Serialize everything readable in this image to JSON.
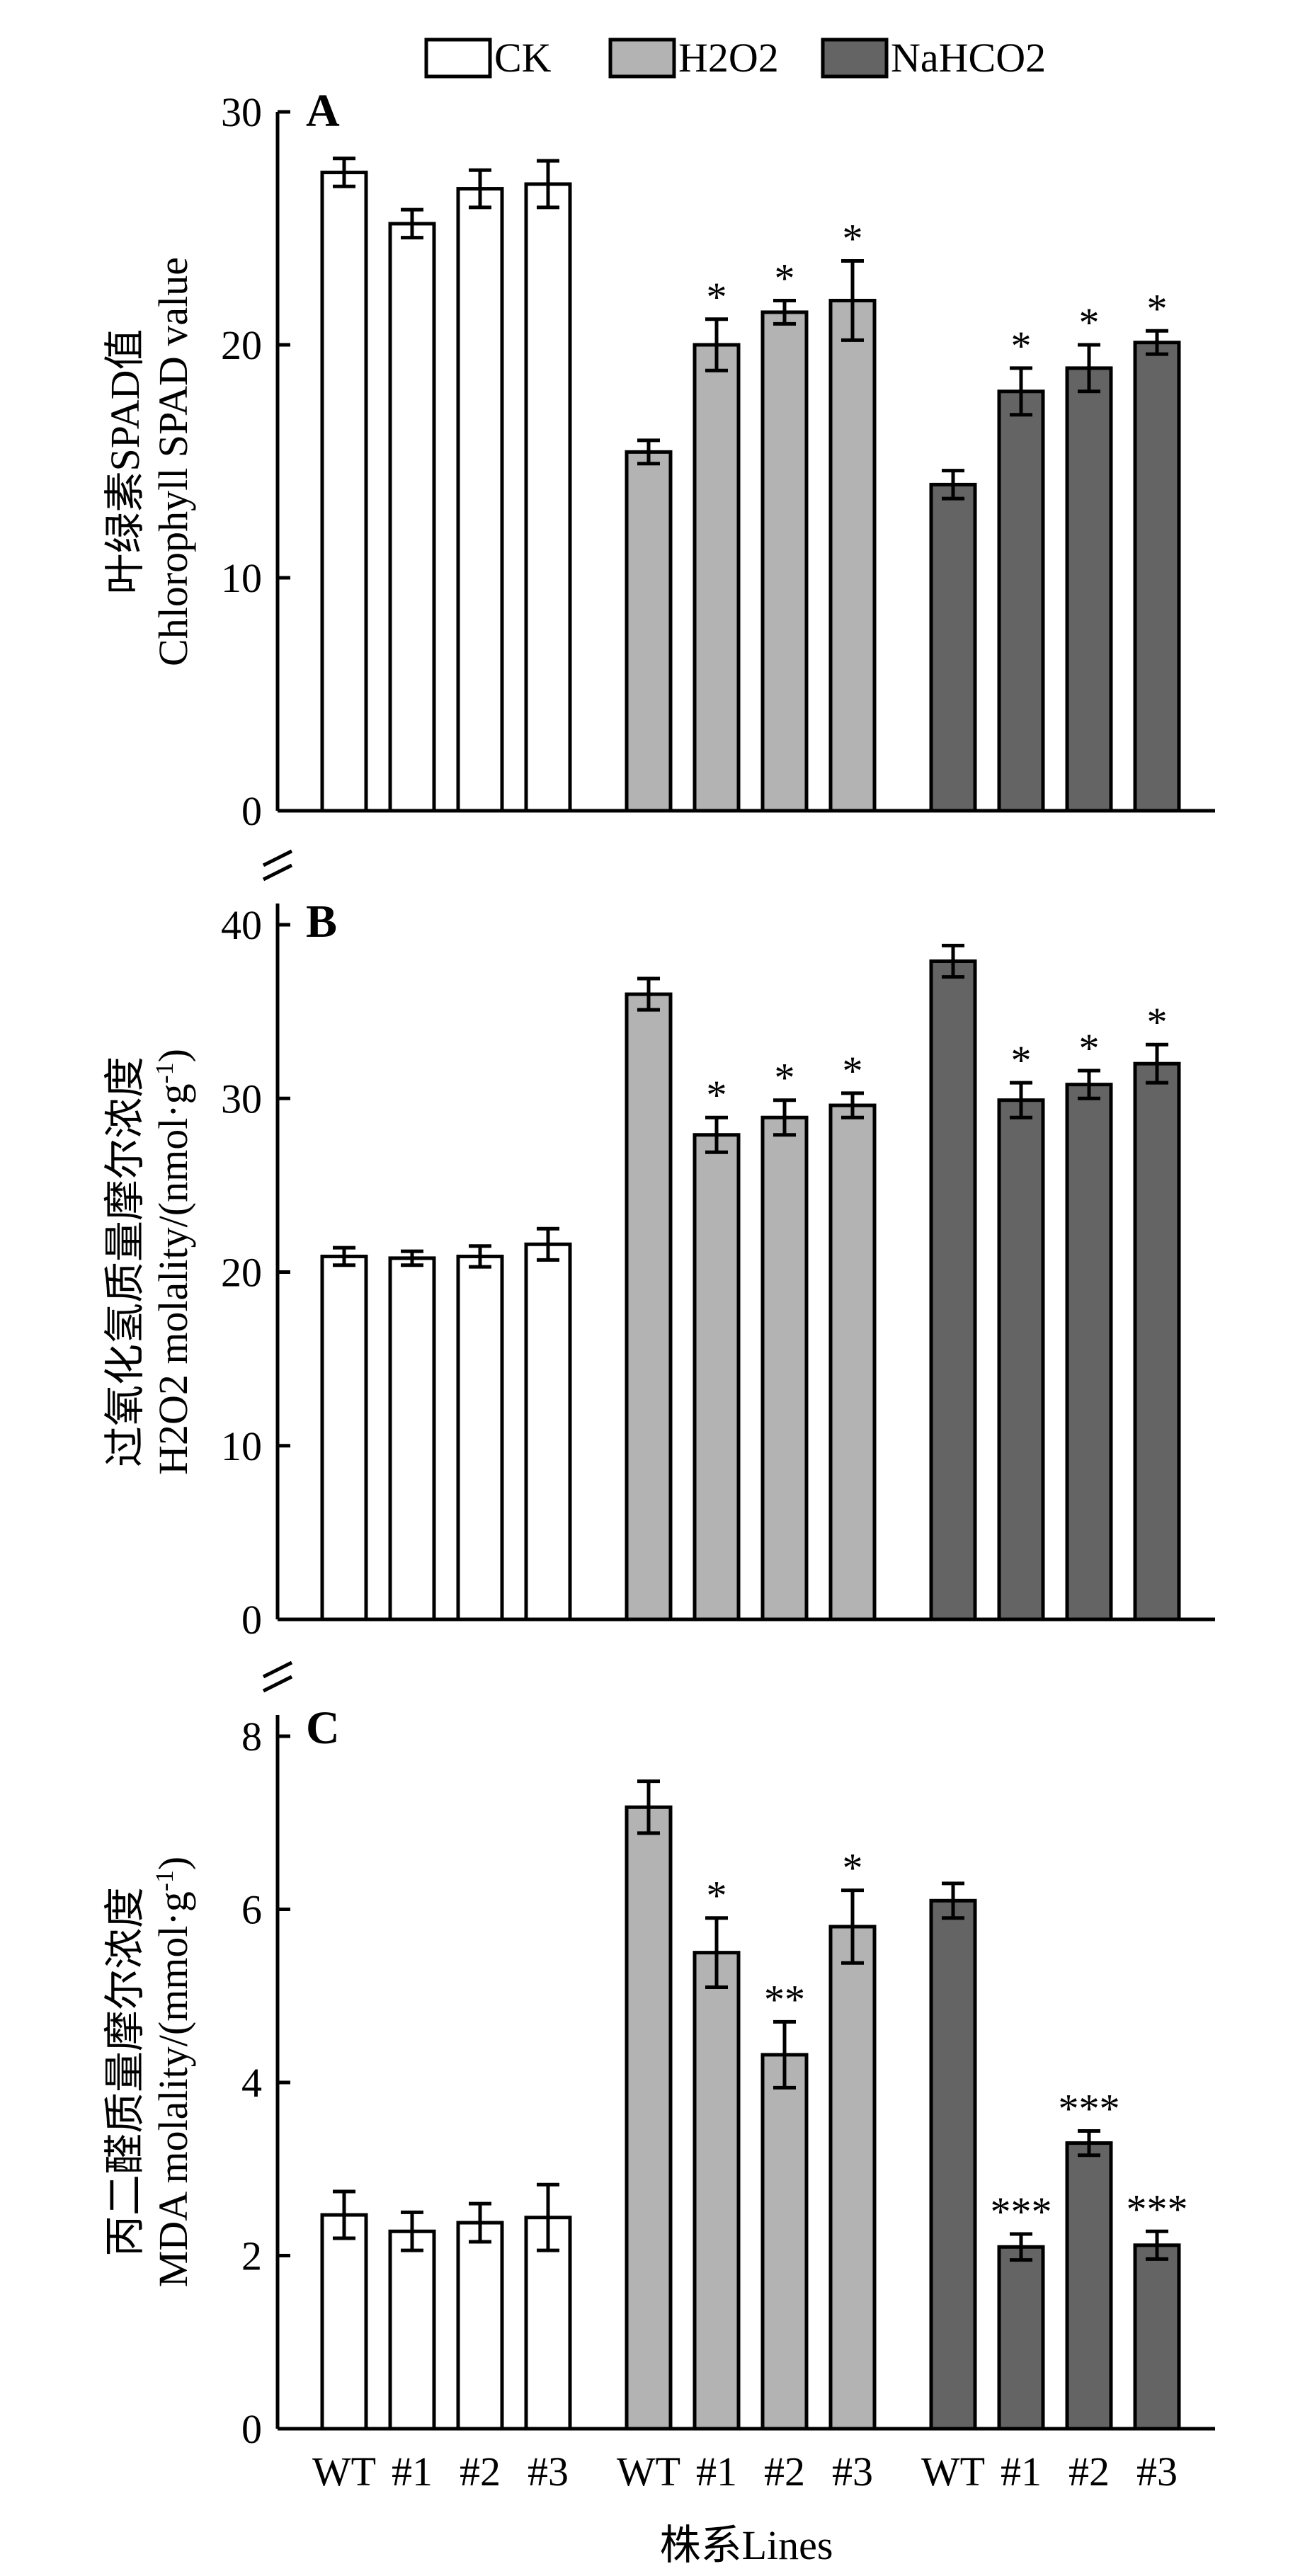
{
  "legend": {
    "items": [
      {
        "label": "CK",
        "color": "#ffffff"
      },
      {
        "label": "H2O2",
        "color": "#b3b3b3"
      },
      {
        "label": "NaHCO2",
        "color": "#646464"
      }
    ]
  },
  "x_axis": {
    "title": "株系Lines",
    "category_labels": [
      "WT",
      "#1",
      "#2",
      "#3",
      "WT",
      "#1",
      "#2",
      "#3",
      "WT",
      "#1",
      "#2",
      "#3"
    ]
  },
  "chart_data": [
    {
      "type": "bar",
      "panel_label": "A",
      "ylabel_cn": "叶绿素SPAD值",
      "ylabel_en": "Chlorophyll SPAD value",
      "ylim": [
        0,
        30
      ],
      "yticks": [
        0,
        10,
        20,
        30
      ],
      "categories": [
        "WT",
        "#1",
        "#2",
        "#3"
      ],
      "series": [
        {
          "name": "CK",
          "color": "#ffffff",
          "values": [
            27.4,
            25.2,
            26.7,
            26.9
          ],
          "errors": [
            0.6,
            0.6,
            0.8,
            1.0
          ],
          "significance": [
            "",
            "",
            "",
            ""
          ]
        },
        {
          "name": "H2O2",
          "color": "#b3b3b3",
          "values": [
            15.4,
            20.0,
            21.4,
            21.9
          ],
          "errors": [
            0.5,
            1.1,
            0.5,
            1.7
          ],
          "significance": [
            "",
            "*",
            "*",
            "*"
          ]
        },
        {
          "name": "NaHCO2",
          "color": "#646464",
          "values": [
            14.0,
            18.0,
            19.0,
            20.1
          ],
          "errors": [
            0.6,
            1.0,
            1.0,
            0.5
          ],
          "significance": [
            "",
            "*",
            "*",
            "*"
          ]
        }
      ]
    },
    {
      "type": "bar",
      "panel_label": "B",
      "ylabel_cn": "过氧化氢质量摩尔浓度",
      "ylabel_en_main": "H2O2 molality/(nmol·g",
      "ylabel_en_sup": "-1",
      "ylabel_en_end": ")",
      "ylim": [
        0,
        40
      ],
      "yticks": [
        0,
        10,
        20,
        30,
        40
      ],
      "categories": [
        "WT",
        "#1",
        "#2",
        "#3"
      ],
      "series": [
        {
          "name": "CK",
          "color": "#ffffff",
          "values": [
            20.9,
            20.8,
            20.9,
            21.6
          ],
          "errors": [
            0.5,
            0.4,
            0.6,
            0.9
          ],
          "significance": [
            "",
            "",
            "",
            ""
          ]
        },
        {
          "name": "H2O2",
          "color": "#b3b3b3",
          "values": [
            36.0,
            27.9,
            28.9,
            29.6
          ],
          "errors": [
            0.9,
            1.0,
            1.0,
            0.7
          ],
          "significance": [
            "",
            "*",
            "*",
            "*"
          ]
        },
        {
          "name": "NaHCO2",
          "color": "#646464",
          "values": [
            37.9,
            29.9,
            30.8,
            32.0
          ],
          "errors": [
            0.9,
            1.0,
            0.8,
            1.1
          ],
          "significance": [
            "",
            "*",
            "*",
            "*"
          ]
        }
      ]
    },
    {
      "type": "bar",
      "panel_label": "C",
      "ylabel_cn": "丙二醛质量摩尔浓度",
      "ylabel_en_main": "MDA molality/(mmol·g",
      "ylabel_en_sup": "-1",
      "ylabel_en_end": ")",
      "ylim": [
        0,
        8
      ],
      "yticks": [
        0,
        2,
        4,
        6,
        8
      ],
      "categories": [
        "WT",
        "#1",
        "#2",
        "#3"
      ],
      "series": [
        {
          "name": "CK",
          "color": "#ffffff",
          "values": [
            2.47,
            2.28,
            2.38,
            2.44
          ],
          "errors": [
            0.27,
            0.22,
            0.22,
            0.38
          ],
          "significance": [
            "",
            "",
            "",
            ""
          ]
        },
        {
          "name": "H2O2",
          "color": "#b3b3b3",
          "values": [
            7.18,
            5.5,
            4.32,
            5.8
          ],
          "errors": [
            0.3,
            0.4,
            0.38,
            0.42
          ],
          "significance": [
            "",
            "*",
            "**",
            "*"
          ]
        },
        {
          "name": "NaHCO2",
          "color": "#646464",
          "values": [
            6.1,
            2.1,
            3.3,
            2.12
          ],
          "errors": [
            0.2,
            0.15,
            0.14,
            0.16
          ],
          "significance": [
            "",
            "***",
            "***",
            "***"
          ]
        }
      ]
    }
  ]
}
